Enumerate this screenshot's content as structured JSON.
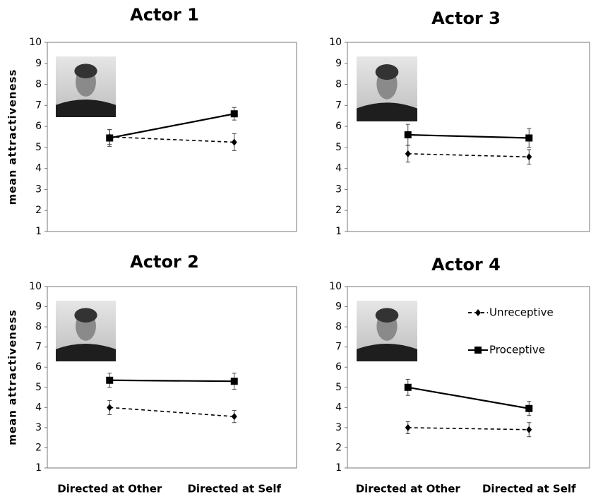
{
  "chart_data": [
    {
      "type": "line",
      "title": "Actor 1",
      "y_label": "mean attractiveness",
      "categories": [
        null,
        null
      ],
      "ylim": [
        1,
        10
      ],
      "yticks": [
        1,
        2,
        3,
        4,
        5,
        6,
        7,
        8,
        9,
        10
      ],
      "series": [
        {
          "name": "Unreceptive",
          "color": "#000000",
          "linestyle": "dashed",
          "marker": "diamond",
          "values": [
            5.5,
            5.25
          ],
          "errors": [
            0.35,
            0.4
          ]
        },
        {
          "name": "Proceptive",
          "color": "#000000",
          "linestyle": "solid",
          "marker": "square",
          "values": [
            5.45,
            6.6
          ],
          "errors": [
            0.4,
            0.3
          ]
        }
      ]
    },
    {
      "type": "line",
      "title": "Actor 3",
      "categories": [
        null,
        null
      ],
      "ylim": [
        1,
        10
      ],
      "yticks": [
        1,
        2,
        3,
        4,
        5,
        6,
        7,
        8,
        9,
        10
      ],
      "series": [
        {
          "name": "Unreceptive",
          "color": "#000000",
          "linestyle": "dashed",
          "marker": "diamond",
          "values": [
            4.7,
            4.55
          ],
          "errors": [
            0.4,
            0.35
          ]
        },
        {
          "name": "Proceptive",
          "color": "#000000",
          "linestyle": "solid",
          "marker": "square",
          "values": [
            5.6,
            5.45
          ],
          "errors": [
            0.5,
            0.45
          ]
        }
      ]
    },
    {
      "type": "line",
      "title": "Actor 2",
      "y_label": "mean attractiveness",
      "categories": [
        "Directed at Other",
        "Directed at Self"
      ],
      "ylim": [
        1,
        10
      ],
      "yticks": [
        1,
        2,
        3,
        4,
        5,
        6,
        7,
        8,
        9,
        10
      ],
      "series": [
        {
          "name": "Unreceptive",
          "color": "#000000",
          "linestyle": "dashed",
          "marker": "diamond",
          "values": [
            4.0,
            3.55
          ],
          "errors": [
            0.35,
            0.3
          ]
        },
        {
          "name": "Proceptive",
          "color": "#000000",
          "linestyle": "solid",
          "marker": "square",
          "values": [
            5.35,
            5.3
          ],
          "errors": [
            0.35,
            0.4
          ]
        }
      ]
    },
    {
      "type": "line",
      "title": "Actor 4",
      "categories": [
        "Directed at Other",
        "Directed at Self"
      ],
      "ylim": [
        1,
        10
      ],
      "yticks": [
        1,
        2,
        3,
        4,
        5,
        6,
        7,
        8,
        9,
        10
      ],
      "legend": "upper right",
      "series": [
        {
          "name": "Unreceptive",
          "color": "#000000",
          "linestyle": "dashed",
          "marker": "diamond",
          "values": [
            3.0,
            2.9
          ],
          "errors": [
            0.3,
            0.35
          ]
        },
        {
          "name": "Proceptive",
          "color": "#000000",
          "linestyle": "solid",
          "marker": "square",
          "values": [
            5.0,
            3.95
          ],
          "errors": [
            0.4,
            0.35
          ]
        }
      ]
    }
  ]
}
